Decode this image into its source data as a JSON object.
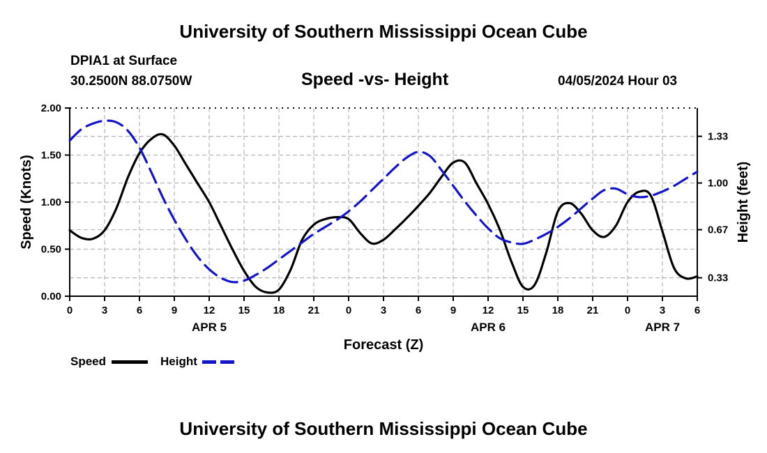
{
  "header": {
    "title": "University of Southern Mississippi Ocean Cube",
    "station": "DPIA1 at Surface",
    "coordinates": "30.2500N  88.0750W",
    "datestamp": "04/05/2024 Hour 03",
    "footer_title": "University of Southern Mississippi Ocean Cube"
  },
  "colors": {
    "speed": "#000000",
    "height": "#1414c8",
    "grid": "#b4b4b4"
  },
  "chart_data": {
    "type": "line",
    "title": "Speed -vs- Height",
    "xlabel": "Forecast (Z)",
    "ylabel": "Speed (Knots)",
    "y2label": "Height (feet)",
    "xlim": [
      0,
      54
    ],
    "ylim": [
      0,
      2.0
    ],
    "y2lim": [
      0.2,
      1.53
    ],
    "x_ticks": [
      0,
      3,
      6,
      9,
      12,
      15,
      18,
      21,
      24,
      27,
      30,
      33,
      36,
      39,
      42,
      45,
      48,
      51,
      54
    ],
    "x_tick_labels": [
      "0",
      "3",
      "6",
      "9",
      "12",
      "15",
      "18",
      "21",
      "0",
      "3",
      "6",
      "9",
      "12",
      "15",
      "18",
      "21",
      "0",
      "3",
      "6"
    ],
    "y_ticks": [
      0,
      0.5,
      1.0,
      1.5,
      2.0
    ],
    "y_tick_labels": [
      "0.00",
      "0.50",
      "1.00",
      "1.50",
      "2.00"
    ],
    "y2_ticks": [
      0.33,
      0.67,
      1.0,
      1.33
    ],
    "y2_tick_labels": [
      "0.33",
      "0.67",
      "1.00",
      "1.33"
    ],
    "day_labels": [
      {
        "x": 12,
        "label": "APR 5"
      },
      {
        "x": 36,
        "label": "APR 6"
      },
      {
        "x": 51,
        "label": "APR 7"
      }
    ],
    "grid": true,
    "series": [
      {
        "name": "Speed",
        "axis": "left",
        "style": "solid",
        "x": [
          0,
          1,
          2,
          3,
          4,
          5,
          6,
          7,
          8,
          9,
          10,
          11,
          12,
          13,
          14,
          15,
          16,
          17,
          18,
          19,
          20,
          21,
          22,
          23,
          24,
          25,
          26,
          27,
          28,
          29,
          30,
          31,
          32,
          33,
          34,
          35,
          36,
          37,
          38,
          39,
          40,
          41,
          42,
          43,
          44,
          45,
          46,
          47,
          48,
          49,
          50,
          51,
          52,
          53,
          54
        ],
        "values": [
          0.7,
          0.62,
          0.61,
          0.7,
          0.93,
          1.26,
          1.52,
          1.67,
          1.72,
          1.6,
          1.4,
          1.2,
          1.0,
          0.75,
          0.5,
          0.27,
          0.1,
          0.04,
          0.07,
          0.28,
          0.6,
          0.76,
          0.82,
          0.84,
          0.82,
          0.67,
          0.56,
          0.6,
          0.71,
          0.83,
          0.96,
          1.1,
          1.27,
          1.42,
          1.42,
          1.2,
          0.98,
          0.71,
          0.37,
          0.1,
          0.12,
          0.46,
          0.9,
          0.99,
          0.88,
          0.7,
          0.63,
          0.75,
          1.0,
          1.11,
          1.07,
          0.69,
          0.3,
          0.19,
          0.21
        ]
      },
      {
        "name": "Height",
        "axis": "right",
        "style": "dashed",
        "x": [
          0,
          1,
          2,
          3,
          4,
          5,
          6,
          7,
          8,
          9,
          10,
          11,
          12,
          13,
          14,
          15,
          16,
          17,
          18,
          19,
          20,
          21,
          22,
          23,
          24,
          25,
          26,
          27,
          28,
          29,
          30,
          31,
          32,
          33,
          34,
          35,
          36,
          37,
          38,
          39,
          40,
          41,
          42,
          43,
          44,
          45,
          46,
          47,
          48,
          49,
          50,
          51,
          52,
          53,
          54
        ],
        "values": [
          1.3,
          1.38,
          1.42,
          1.44,
          1.43,
          1.37,
          1.25,
          1.08,
          0.9,
          0.74,
          0.6,
          0.48,
          0.39,
          0.33,
          0.3,
          0.31,
          0.35,
          0.4,
          0.46,
          0.52,
          0.58,
          0.64,
          0.69,
          0.74,
          0.8,
          0.87,
          0.95,
          1.03,
          1.11,
          1.18,
          1.22,
          1.19,
          1.09,
          0.98,
          0.87,
          0.77,
          0.68,
          0.61,
          0.58,
          0.57,
          0.6,
          0.64,
          0.69,
          0.75,
          0.82,
          0.89,
          0.95,
          0.96,
          0.92,
          0.9,
          0.91,
          0.94,
          0.98,
          1.03,
          1.08
        ]
      }
    ],
    "legend": [
      {
        "label": "Speed",
        "style": "solid"
      },
      {
        "label": "Height",
        "style": "dashed"
      }
    ]
  }
}
